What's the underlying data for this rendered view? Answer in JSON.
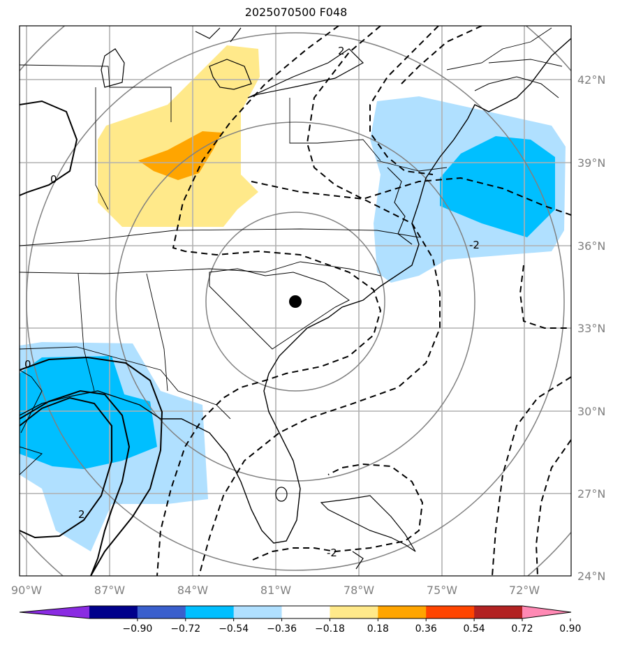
{
  "title": "2025070500 F048",
  "lat_labels": [
    "42°N",
    "39°N",
    "36°N",
    "33°N",
    "30°N",
    "27°N",
    "24°N"
  ],
  "lon_labels": [
    "90°W",
    "87°W",
    "84°W",
    "81°W",
    "78°W",
    "75°W",
    "72°W"
  ],
  "contour_labels": {
    "zero_upper": "0",
    "zero_lower": "0",
    "neg_two_bottom": "-2",
    "neg_two_right": "-2",
    "two_left": "2",
    "two_top": "2"
  },
  "colorbar": {
    "ticks": [
      "−0.90",
      "−0.72",
      "−0.54",
      "−0.36",
      "−0.18",
      "0.18",
      "0.36",
      "0.54",
      "0.72",
      "0.90"
    ],
    "colors": [
      "#8a2be2",
      "#00008b",
      "#3a5fcd",
      "#00bfff",
      "#b0e0ff",
      "#ffffff",
      "#ffe98a",
      "#ffa500",
      "#ff4500",
      "#b22222",
      "#ff89b4"
    ]
  },
  "center_marker": "filled-dot"
}
